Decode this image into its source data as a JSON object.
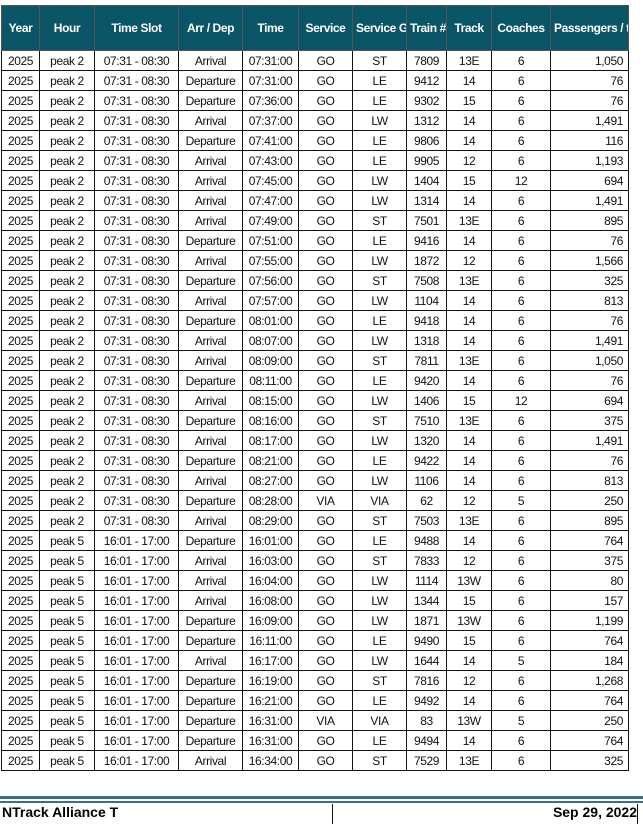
{
  "header_color": "#0a5566",
  "columns": [
    "Year",
    "Hour",
    "Time Slot",
    "Arr / Dep",
    "Time",
    "Service",
    "Service Group",
    "Train #",
    "Track",
    "Coaches",
    "Passengers / train"
  ],
  "rows": [
    [
      "2025",
      "peak 2",
      "07:31 - 08:30",
      "Arrival",
      "07:31:00",
      "GO",
      "ST",
      "7809",
      "13E",
      "6",
      "1,050"
    ],
    [
      "2025",
      "peak 2",
      "07:31 - 08:30",
      "Departure",
      "07:31:00",
      "GO",
      "LE",
      "9412",
      "14",
      "6",
      "76"
    ],
    [
      "2025",
      "peak 2",
      "07:31 - 08:30",
      "Departure",
      "07:36:00",
      "GO",
      "LE",
      "9302",
      "15",
      "6",
      "76"
    ],
    [
      "2025",
      "peak 2",
      "07:31 - 08:30",
      "Arrival",
      "07:37:00",
      "GO",
      "LW",
      "1312",
      "14",
      "6",
      "1,491"
    ],
    [
      "2025",
      "peak 2",
      "07:31 - 08:30",
      "Departure",
      "07:41:00",
      "GO",
      "LE",
      "9806",
      "14",
      "6",
      "116"
    ],
    [
      "2025",
      "peak 2",
      "07:31 - 08:30",
      "Arrival",
      "07:43:00",
      "GO",
      "LE",
      "9905",
      "12",
      "6",
      "1,193"
    ],
    [
      "2025",
      "peak 2",
      "07:31 - 08:30",
      "Arrival",
      "07:45:00",
      "GO",
      "LW",
      "1404",
      "15",
      "12",
      "694"
    ],
    [
      "2025",
      "peak 2",
      "07:31 - 08:30",
      "Arrival",
      "07:47:00",
      "GO",
      "LW",
      "1314",
      "14",
      "6",
      "1,491"
    ],
    [
      "2025",
      "peak 2",
      "07:31 - 08:30",
      "Arrival",
      "07:49:00",
      "GO",
      "ST",
      "7501",
      "13E",
      "6",
      "895"
    ],
    [
      "2025",
      "peak 2",
      "07:31 - 08:30",
      "Departure",
      "07:51:00",
      "GO",
      "LE",
      "9416",
      "14",
      "6",
      "76"
    ],
    [
      "2025",
      "peak 2",
      "07:31 - 08:30",
      "Arrival",
      "07:55:00",
      "GO",
      "LW",
      "1872",
      "12",
      "6",
      "1,566"
    ],
    [
      "2025",
      "peak 2",
      "07:31 - 08:30",
      "Departure",
      "07:56:00",
      "GO",
      "ST",
      "7508",
      "13E",
      "6",
      "325"
    ],
    [
      "2025",
      "peak 2",
      "07:31 - 08:30",
      "Arrival",
      "07:57:00",
      "GO",
      "LW",
      "1104",
      "14",
      "6",
      "813"
    ],
    [
      "2025",
      "peak 2",
      "07:31 - 08:30",
      "Departure",
      "08:01:00",
      "GO",
      "LE",
      "9418",
      "14",
      "6",
      "76"
    ],
    [
      "2025",
      "peak 2",
      "07:31 - 08:30",
      "Arrival",
      "08:07:00",
      "GO",
      "LW",
      "1318",
      "14",
      "6",
      "1,491"
    ],
    [
      "2025",
      "peak 2",
      "07:31 - 08:30",
      "Arrival",
      "08:09:00",
      "GO",
      "ST",
      "7811",
      "13E",
      "6",
      "1,050"
    ],
    [
      "2025",
      "peak 2",
      "07:31 - 08:30",
      "Departure",
      "08:11:00",
      "GO",
      "LE",
      "9420",
      "14",
      "6",
      "76"
    ],
    [
      "2025",
      "peak 2",
      "07:31 - 08:30",
      "Arrival",
      "08:15:00",
      "GO",
      "LW",
      "1406",
      "15",
      "12",
      "694"
    ],
    [
      "2025",
      "peak 2",
      "07:31 - 08:30",
      "Departure",
      "08:16:00",
      "GO",
      "ST",
      "7510",
      "13E",
      "6",
      "375"
    ],
    [
      "2025",
      "peak 2",
      "07:31 - 08:30",
      "Arrival",
      "08:17:00",
      "GO",
      "LW",
      "1320",
      "14",
      "6",
      "1,491"
    ],
    [
      "2025",
      "peak 2",
      "07:31 - 08:30",
      "Departure",
      "08:21:00",
      "GO",
      "LE",
      "9422",
      "14",
      "6",
      "76"
    ],
    [
      "2025",
      "peak 2",
      "07:31 - 08:30",
      "Arrival",
      "08:27:00",
      "GO",
      "LW",
      "1106",
      "14",
      "6",
      "813"
    ],
    [
      "2025",
      "peak 2",
      "07:31 - 08:30",
      "Departure",
      "08:28:00",
      "VIA",
      "VIA",
      "62",
      "12",
      "5",
      "250"
    ],
    [
      "2025",
      "peak 2",
      "07:31 - 08:30",
      "Arrival",
      "08:29:00",
      "GO",
      "ST",
      "7503",
      "13E",
      "6",
      "895"
    ],
    [
      "2025",
      "peak 5",
      "16:01 - 17:00",
      "Departure",
      "16:01:00",
      "GO",
      "LE",
      "9488",
      "14",
      "6",
      "764"
    ],
    [
      "2025",
      "peak 5",
      "16:01 - 17:00",
      "Arrival",
      "16:03:00",
      "GO",
      "ST",
      "7833",
      "12",
      "6",
      "375"
    ],
    [
      "2025",
      "peak 5",
      "16:01 - 17:00",
      "Arrival",
      "16:04:00",
      "GO",
      "LW",
      "1114",
      "13W",
      "6",
      "80"
    ],
    [
      "2025",
      "peak 5",
      "16:01 - 17:00",
      "Arrival",
      "16:08:00",
      "GO",
      "LW",
      "1344",
      "15",
      "6",
      "157"
    ],
    [
      "2025",
      "peak 5",
      "16:01 - 17:00",
      "Departure",
      "16:09:00",
      "GO",
      "LW",
      "1871",
      "13W",
      "6",
      "1,199"
    ],
    [
      "2025",
      "peak 5",
      "16:01 - 17:00",
      "Departure",
      "16:11:00",
      "GO",
      "LE",
      "9490",
      "15",
      "6",
      "764"
    ],
    [
      "2025",
      "peak 5",
      "16:01 - 17:00",
      "Arrival",
      "16:17:00",
      "GO",
      "LW",
      "1644",
      "14",
      "5",
      "184"
    ],
    [
      "2025",
      "peak 5",
      "16:01 - 17:00",
      "Departure",
      "16:19:00",
      "GO",
      "ST",
      "7816",
      "12",
      "6",
      "1,268"
    ],
    [
      "2025",
      "peak 5",
      "16:01 - 17:00",
      "Departure",
      "16:21:00",
      "GO",
      "LE",
      "9492",
      "14",
      "6",
      "764"
    ],
    [
      "2025",
      "peak 5",
      "16:01 - 17:00",
      "Departure",
      "16:31:00",
      "VIA",
      "VIA",
      "83",
      "13W",
      "5",
      "250"
    ],
    [
      "2025",
      "peak 5",
      "16:01 - 17:00",
      "Departure",
      "16:31:00",
      "GO",
      "LE",
      "9494",
      "14",
      "6",
      "764"
    ],
    [
      "2025",
      "peak 5",
      "16:01 - 17:00",
      "Arrival",
      "16:34:00",
      "GO",
      "ST",
      "7529",
      "13E",
      "6",
      "325"
    ]
  ],
  "footer": {
    "left": "NTrack Alliance T",
    "right": "Sep 29, 2022"
  }
}
